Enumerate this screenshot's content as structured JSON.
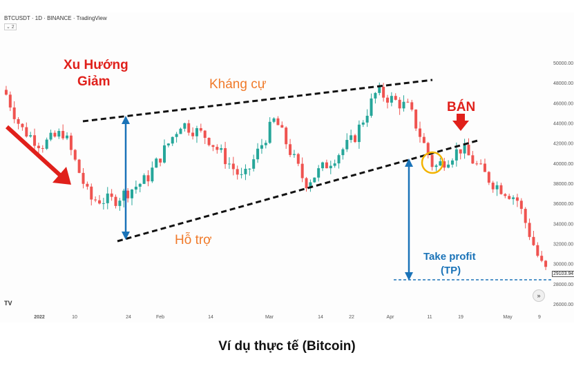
{
  "header": {
    "symbol_line": "BTCUSDT · 1D · BINANCE · TradingView",
    "indicator_badge": "⌄ 2"
  },
  "caption": "Ví dụ thực tế (Bitcoin)",
  "annotations": {
    "downtrend": [
      "Xu Hướng",
      "Giảm"
    ],
    "resistance": "Kháng cự",
    "support": "Hỗ trợ",
    "sell": "BÁN",
    "take_profit": [
      "Take profit",
      "(TP)"
    ]
  },
  "logo": "TV",
  "scroll_button": "»",
  "current_price_label": "29103.94",
  "colors": {
    "up": "#26a69a",
    "down": "#ef5350",
    "annotation_red": "#e0201b",
    "annotation_orange": "#f07a2a",
    "annotation_blue": "#1a73b8",
    "circle": "#f3b300"
  },
  "chart_data": {
    "type": "candlestick",
    "title": "BTCUSDT · 1D · BINANCE",
    "y_ticks": [
      "50000.00",
      "48000.00",
      "46000.00",
      "44000.00",
      "42000.00",
      "40000.00",
      "38000.00",
      "36000.00",
      "34000.00",
      "32000.00",
      "30000.00",
      "28000.00",
      "26000.00"
    ],
    "ylim": [
      25000,
      52000
    ],
    "x_ticks": [
      "2022",
      "10",
      "24",
      "Feb",
      "14",
      "Mar",
      "14",
      "22",
      "Apr",
      "11",
      "19",
      "May",
      "9"
    ],
    "trendlines": [
      {
        "name": "Kháng cự",
        "from": [
          "Jan 12",
          44400
        ],
        "to": [
          "May 1",
          48500
        ]
      },
      {
        "name": "Hỗ trợ",
        "from": [
          "Jan 22",
          32400
        ],
        "to": [
          "May 2",
          42000
        ]
      }
    ],
    "take_profit_level": 28900,
    "current_price": 29103.94,
    "approx_closes": [
      {
        "date": "Jan 1",
        "close": 47300
      },
      {
        "date": "Jan 5",
        "close": 43500
      },
      {
        "date": "Jan 10",
        "close": 41800
      },
      {
        "date": "Jan 15",
        "close": 43100
      },
      {
        "date": "Jan 21",
        "close": 36400
      },
      {
        "date": "Jan 24",
        "close": 36300
      },
      {
        "date": "Feb 1",
        "close": 38400
      },
      {
        "date": "Feb 8",
        "close": 44000
      },
      {
        "date": "Feb 14",
        "close": 42600
      },
      {
        "date": "Feb 24",
        "close": 38300
      },
      {
        "date": "Mar 1",
        "close": 44400
      },
      {
        "date": "Mar 7",
        "close": 38000
      },
      {
        "date": "Mar 14",
        "close": 39700
      },
      {
        "date": "Mar 22",
        "close": 42400
      },
      {
        "date": "Mar 29",
        "close": 47100
      },
      {
        "date": "Apr 5",
        "close": 45500
      },
      {
        "date": "Apr 11",
        "close": 39500
      },
      {
        "date": "Apr 19",
        "close": 41500
      },
      {
        "date": "Apr 26",
        "close": 38100
      },
      {
        "date": "May 5",
        "close": 36500
      },
      {
        "date": "May 9",
        "close": 30100
      },
      {
        "date": "May 12",
        "close": 29100
      }
    ]
  }
}
